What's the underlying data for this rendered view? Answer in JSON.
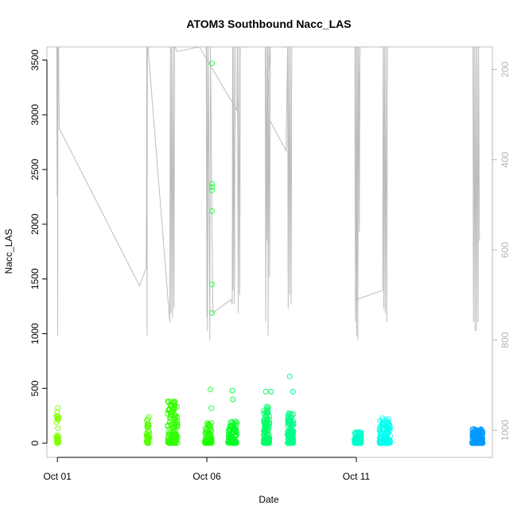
{
  "chart_data": {
    "type": "scatter",
    "title": "ATOM3 Southbound Nacc_LAS",
    "xlabel": "Date",
    "ylabel": "Nacc_LAS",
    "x_unit": "days",
    "x_ticks": [
      {
        "day": 1,
        "label": "Oct 01"
      },
      {
        "day": 6,
        "label": "Oct 06"
      },
      {
        "day": 11,
        "label": "Oct 11"
      }
    ],
    "xlim": [
      0.65,
      15.55
    ],
    "ylim": [
      -130,
      3620
    ],
    "y_ticks": [
      0,
      500,
      1000,
      1500,
      2000,
      2500,
      3000,
      3500
    ],
    "y2_label": "",
    "y2_ticks": [
      200,
      400,
      600,
      800,
      1000
    ],
    "y2_lim": [
      1060,
      150
    ],
    "y2_reversed": true,
    "altitude_track_color": "#bdbdbd",
    "point_style": "open circle, color varies by date (green to blue)",
    "clusters": [
      {
        "day": 1.0,
        "color": "#80ff00",
        "count": 30,
        "max": 325,
        "spread": 0.05
      },
      {
        "day": 4.03,
        "color": "#55ff00",
        "count": 35,
        "max": 240,
        "spread": 0.05
      },
      {
        "day": 4.85,
        "color": "#33ff00",
        "count": 120,
        "max": 390,
        "spread": 0.17
      },
      {
        "day": 6.05,
        "color": "#22ff00",
        "count": 60,
        "max": 200,
        "spread": 0.12
      },
      {
        "day": 6.85,
        "color": "#00ff22",
        "count": 80,
        "max": 200,
        "spread": 0.15
      },
      {
        "day": 8.0,
        "color": "#00ff66",
        "count": 110,
        "max": 360,
        "spread": 0.1
      },
      {
        "day": 8.8,
        "color": "#00ff88",
        "count": 100,
        "max": 290,
        "spread": 0.1
      },
      {
        "day": 11.05,
        "color": "#00ffcc",
        "count": 80,
        "max": 110,
        "spread": 0.12
      },
      {
        "day": 11.95,
        "color": "#00ffee",
        "count": 120,
        "max": 230,
        "spread": 0.18
      },
      {
        "day": 15.05,
        "color": "#0099ff",
        "count": 150,
        "max": 130,
        "spread": 0.18
      }
    ],
    "highlight_points": [
      {
        "day": 6.17,
        "y": 3470,
        "color": "#22ff44"
      },
      {
        "day": 6.17,
        "y": 2370,
        "color": "#22ff44"
      },
      {
        "day": 6.17,
        "y": 2340,
        "color": "#22ff44"
      },
      {
        "day": 6.17,
        "y": 2310,
        "color": "#22ff44"
      },
      {
        "day": 6.17,
        "y": 2120,
        "color": "#22ff44"
      },
      {
        "day": 6.17,
        "y": 1450,
        "color": "#22ff44"
      },
      {
        "day": 6.17,
        "y": 1190,
        "color": "#22ff44"
      },
      {
        "day": 6.12,
        "y": 490,
        "color": "#22ff44"
      },
      {
        "day": 6.15,
        "y": 320,
        "color": "#22ff44"
      },
      {
        "day": 6.85,
        "y": 480,
        "color": "#00ff44"
      },
      {
        "day": 6.87,
        "y": 400,
        "color": "#00ff44"
      },
      {
        "day": 7.97,
        "y": 470,
        "color": "#00ff66"
      },
      {
        "day": 8.15,
        "y": 470,
        "color": "#00ff66"
      },
      {
        "day": 8.77,
        "y": 610,
        "color": "#00ff88"
      },
      {
        "day": 8.88,
        "y": 470,
        "color": "#00ff88"
      }
    ],
    "altitude_track": [
      [
        0.98,
        150
      ],
      [
        0.99,
        480
      ],
      [
        1.0,
        150
      ],
      [
        1.01,
        790
      ],
      [
        1.02,
        150
      ],
      [
        1.04,
        150
      ],
      [
        1.06,
        330
      ],
      [
        3.75,
        680
      ],
      [
        3.97,
        640
      ],
      [
        3.98,
        490
      ],
      [
        3.99,
        150
      ],
      [
        4.0,
        790
      ],
      [
        4.01,
        150
      ],
      [
        4.03,
        150
      ],
      [
        4.76,
        760
      ],
      [
        4.78,
        150
      ],
      [
        4.8,
        740
      ],
      [
        4.82,
        150
      ],
      [
        4.85,
        750
      ],
      [
        4.87,
        150
      ],
      [
        4.9,
        730
      ],
      [
        4.92,
        150
      ],
      [
        4.94,
        150
      ],
      [
        5.0,
        160
      ],
      [
        5.75,
        150
      ],
      [
        7.0,
        290
      ],
      [
        7.02,
        150
      ],
      [
        7.05,
        740
      ],
      [
        7.07,
        150
      ],
      [
        7.1,
        700
      ],
      [
        7.12,
        150
      ],
      [
        7.15,
        150
      ],
      [
        6.95,
        150
      ],
      [
        6.92,
        720
      ],
      [
        6.9,
        150
      ],
      [
        6.88,
        690
      ],
      [
        6.86,
        150
      ],
      [
        6.85,
        720
      ],
      [
        6.8,
        710
      ],
      [
        6.2,
        740
      ],
      [
        6.12,
        150
      ],
      [
        6.1,
        800
      ],
      [
        6.05,
        150
      ],
      [
        6.0,
        750
      ],
      [
        5.98,
        150
      ],
      [
        6.0,
        150
      ],
      [
        6.02,
        780
      ],
      [
        6.05,
        150
      ],
      [
        7.95,
        150
      ],
      [
        7.97,
        760
      ],
      [
        7.99,
        150
      ],
      [
        8.01,
        580
      ],
      [
        8.03,
        150
      ],
      [
        8.05,
        790
      ],
      [
        8.07,
        150
      ],
      [
        8.1,
        660
      ],
      [
        8.12,
        150
      ],
      [
        8.0,
        300
      ],
      [
        8.65,
        380
      ],
      [
        8.7,
        150
      ],
      [
        8.72,
        730
      ],
      [
        8.74,
        150
      ],
      [
        8.77,
        700
      ],
      [
        8.79,
        150
      ],
      [
        8.82,
        720
      ],
      [
        8.84,
        150
      ],
      [
        10.95,
        150
      ],
      [
        10.97,
        760
      ],
      [
        10.99,
        150
      ],
      [
        11.01,
        790
      ],
      [
        11.03,
        150
      ],
      [
        11.05,
        800
      ],
      [
        11.07,
        150
      ],
      [
        11.1,
        560
      ],
      [
        11.12,
        150
      ],
      [
        11.0,
        710
      ],
      [
        11.88,
        690
      ],
      [
        11.9,
        150
      ],
      [
        11.92,
        730
      ],
      [
        11.94,
        150
      ],
      [
        11.97,
        740
      ],
      [
        11.99,
        150
      ],
      [
        12.02,
        760
      ],
      [
        12.04,
        150
      ],
      [
        14.9,
        150
      ],
      [
        14.92,
        760
      ],
      [
        14.94,
        150
      ],
      [
        14.97,
        780
      ],
      [
        14.99,
        150
      ],
      [
        15.02,
        780
      ],
      [
        15.04,
        150
      ],
      [
        15.07,
        760
      ],
      [
        15.09,
        150
      ],
      [
        15.12,
        580
      ]
    ]
  }
}
